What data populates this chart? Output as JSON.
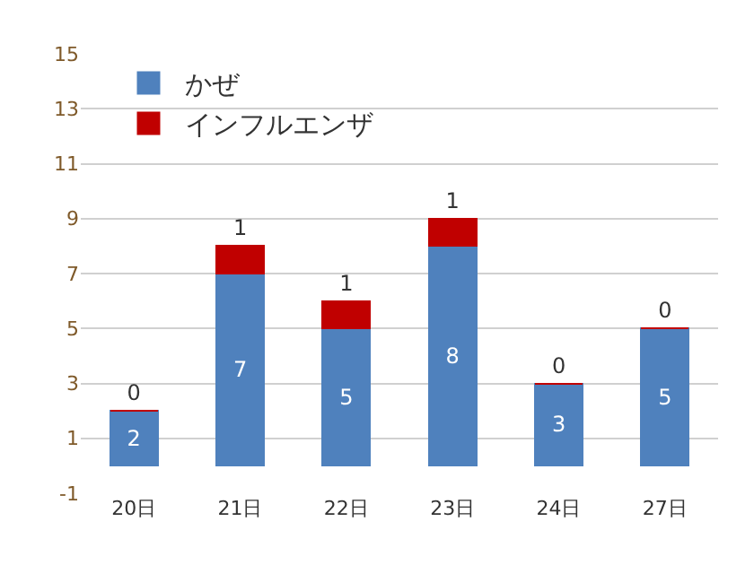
{
  "chart_data": {
    "type": "bar",
    "categories": [
      "20日",
      "21日",
      "22日",
      "23日",
      "24日",
      "27日"
    ],
    "series": [
      {
        "name": "かぜ",
        "color": "#4f81bd",
        "values": [
          2,
          7,
          5,
          8,
          3,
          5
        ]
      },
      {
        "name": "インフルエンザ",
        "color": "#c00000",
        "values": [
          0,
          1,
          1,
          1,
          0,
          0
        ]
      }
    ],
    "stacked": true,
    "ylim": [
      -1,
      15
    ],
    "yticks": [
      -1,
      1,
      3,
      5,
      7,
      9,
      11,
      13,
      15
    ],
    "grid": "y",
    "legend": "top left",
    "data_labels": true
  }
}
